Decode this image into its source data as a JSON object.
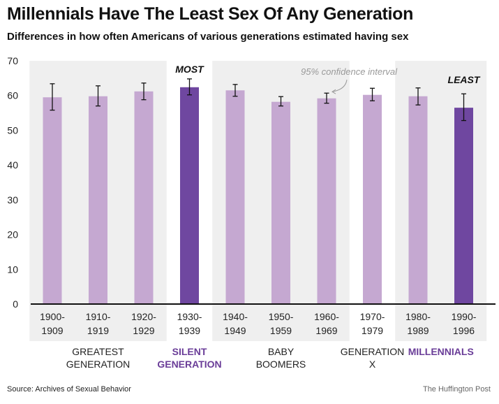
{
  "title": "Millennials Have The Least Sex Of Any Generation",
  "subtitle": "Differences in how often Americans of various generations estimated having sex",
  "source": "Source: Archives of Sexual Behavior",
  "credit": "The Huffington Post",
  "colors": {
    "bar": "#c5a8d1",
    "highlight": "#6f47a0",
    "band": "#efefef",
    "highlight_text": "#6a3d98"
  },
  "chart_data": {
    "type": "bar",
    "title": "Millennials Have The Least Sex Of Any Generation",
    "subtitle": "Differences in how often Americans of various generations estimated having sex",
    "xlabel": "",
    "ylabel": "",
    "ylim": [
      0,
      70
    ],
    "yticks": [
      0,
      10,
      20,
      30,
      40,
      50,
      60,
      70
    ],
    "grid": false,
    "categories": [
      {
        "line1": "1900-",
        "line2": "1909"
      },
      {
        "line1": "1910-",
        "line2": "1919"
      },
      {
        "line1": "1920-",
        "line2": "1929"
      },
      {
        "line1": "1930-",
        "line2": "1939"
      },
      {
        "line1": "1940-",
        "line2": "1949"
      },
      {
        "line1": "1950-",
        "line2": "1959"
      },
      {
        "line1": "1960-",
        "line2": "1969"
      },
      {
        "line1": "1970-",
        "line2": "1979"
      },
      {
        "line1": "1980-",
        "line2": "1989"
      },
      {
        "line1": "1990-",
        "line2": "1996"
      }
    ],
    "values": [
      59.5,
      59.8,
      61.2,
      62.4,
      61.5,
      58.2,
      59.2,
      60.2,
      59.8,
      56.5
    ],
    "ci_low": [
      55.8,
      57.0,
      58.8,
      60.2,
      59.8,
      57.0,
      57.8,
      58.5,
      57.3,
      52.8
    ],
    "ci_high": [
      63.4,
      62.8,
      63.6,
      64.8,
      63.2,
      59.7,
      60.7,
      62.1,
      62.2,
      60.5
    ],
    "highlighted": [
      3,
      9
    ],
    "generations": [
      {
        "line1": "GREATEST",
        "line2": "GENERATION",
        "from": 0,
        "to": 2,
        "band": true,
        "highlight": false
      },
      {
        "line1": "SILENT",
        "line2": "GENERATION",
        "from": 3,
        "to": 3,
        "band": false,
        "highlight": true
      },
      {
        "line1": "BABY",
        "line2": "BOOMERS",
        "from": 4,
        "to": 6,
        "band": true,
        "highlight": false
      },
      {
        "line1": "GENERATION",
        "line2": "X",
        "from": 7,
        "to": 7,
        "band": false,
        "highlight": false
      },
      {
        "line1": "MILLENNIALS",
        "line2": "",
        "from": 8,
        "to": 9,
        "band": true,
        "highlight": true
      }
    ],
    "annotations": [
      {
        "text": "MOST",
        "index": 3
      },
      {
        "text": "LEAST",
        "index": 9
      },
      {
        "text": "95% confidence interval",
        "index": 6
      }
    ]
  }
}
